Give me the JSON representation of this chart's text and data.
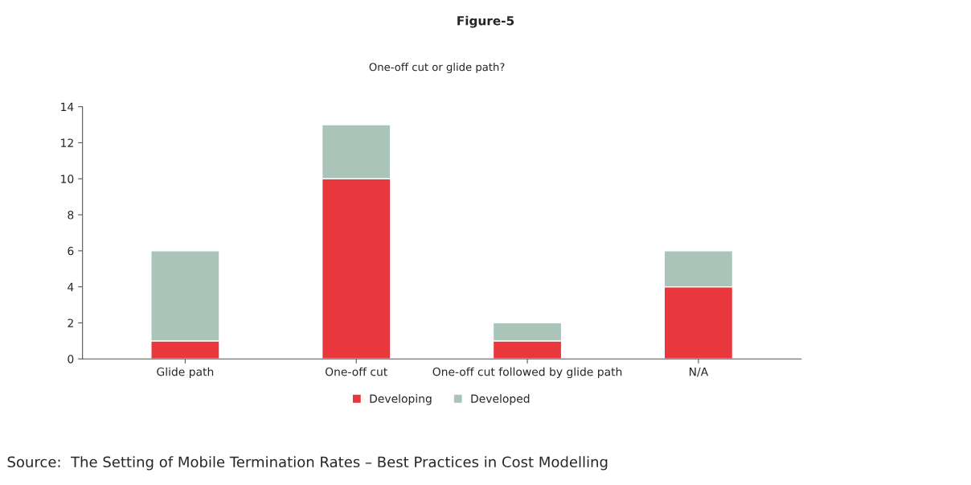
{
  "chart_data": {
    "type": "bar",
    "title": "Figure-5",
    "subtitle": "One-off cut or glide path?",
    "categories": [
      "Glide path",
      "One-off cut",
      "One-off cut followed by glide path",
      "N/A"
    ],
    "stacked": true,
    "series": [
      {
        "name": "Developing",
        "color": "#e8383d",
        "values": [
          1,
          10,
          1,
          4
        ]
      },
      {
        "name": "Developed",
        "color": "#abc4b9",
        "values": [
          5,
          3,
          1,
          2
        ]
      }
    ],
    "ylim": [
      0,
      14
    ],
    "yticks": [
      0,
      2,
      4,
      6,
      8,
      10,
      12,
      14
    ],
    "grid": false,
    "legend": "bottom",
    "annotations": [
      "Source:  The Setting of Mobile Termination Rates – Best Practices in Cost Modelling"
    ]
  }
}
